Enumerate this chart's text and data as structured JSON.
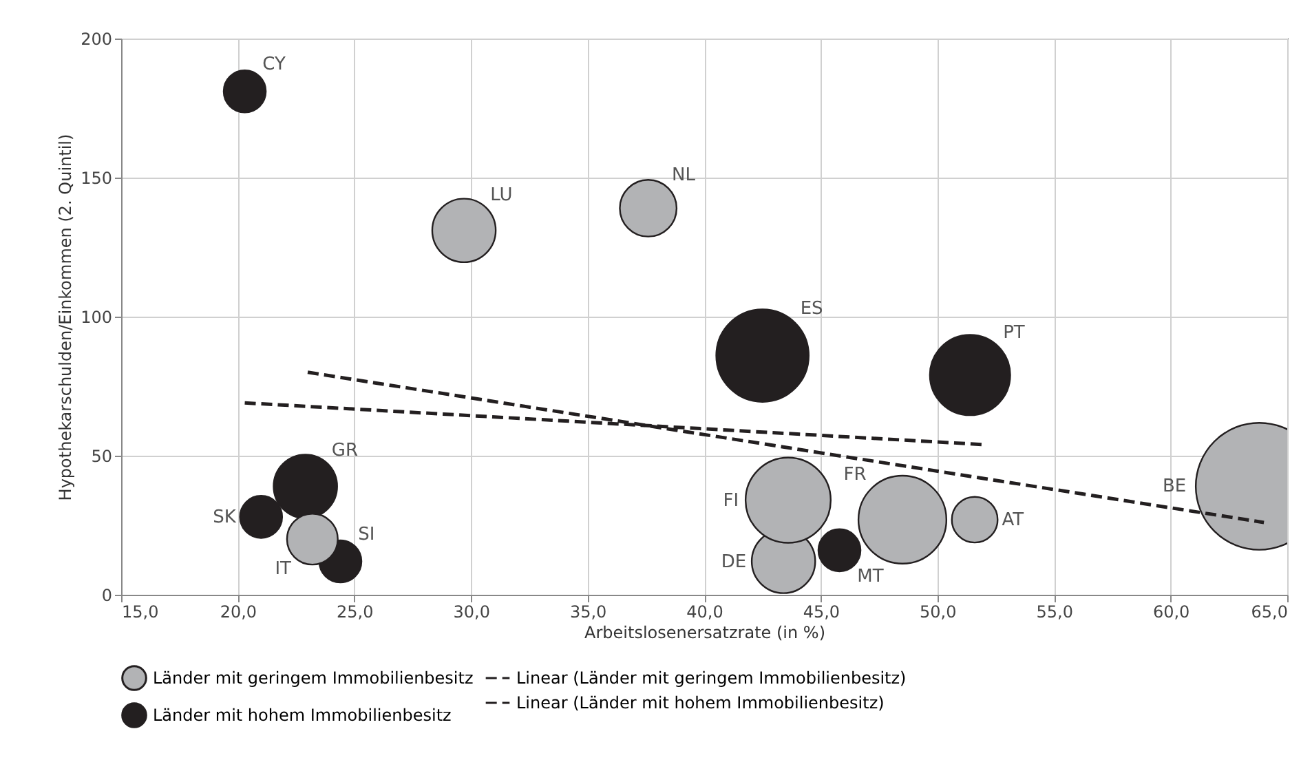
{
  "chart_data": {
    "type": "bubble",
    "xlabel": "Arbeitslosenersatzrate (in %)",
    "ylabel": "Hypothekarschulden/Einkommen (2. Quintil)",
    "xlim": [
      15,
      65
    ],
    "xticks": [
      {
        "value": 15,
        "label": "15,0"
      },
      {
        "value": 20,
        "label": "20,0"
      },
      {
        "value": 25,
        "label": "25,0"
      },
      {
        "value": 30,
        "label": "30,0"
      },
      {
        "value": 35,
        "label": "35,0"
      },
      {
        "value": 40,
        "label": "40,0"
      },
      {
        "value": 45,
        "label": "45,0"
      },
      {
        "value": 50,
        "label": "50,0"
      },
      {
        "value": 55,
        "label": "55,0"
      },
      {
        "value": 60,
        "label": "60,0"
      },
      {
        "value": 65,
        "label": "65,0"
      }
    ],
    "ylim": [
      0,
      200
    ],
    "yticks": [
      0,
      50,
      100,
      150,
      200
    ],
    "grid": true,
    "legend": "bottom",
    "series": [
      {
        "name": "Länder mit geringem Immobilienbesitz",
        "color": "#b2b3b5",
        "x": [
          29.7,
          37.6,
          23.2,
          43.6,
          43.4,
          48.5,
          51.6,
          63.8
        ],
        "values": [
          131,
          139,
          20,
          34,
          12,
          27,
          27,
          39
        ],
        "sizes": [
          0.25,
          0.2,
          0.16,
          0.45,
          0.25,
          0.48,
          0.13,
          1
        ],
        "value_labels": [
          "LU",
          "NL",
          "IT",
          "FI",
          "DE",
          "FR",
          "AT",
          "BE"
        ]
      },
      {
        "name": "Länder mit hohem Immobilienbesitz",
        "color": "#231f20",
        "x": [
          20.3,
          22.9,
          21.0,
          24.4,
          42.5,
          51.4,
          45.8
        ],
        "values": [
          181,
          39,
          28,
          12,
          86,
          79,
          16
        ],
        "sizes": [
          0.11,
          0.25,
          0.11,
          0.11,
          0.53,
          0.4,
          0.11
        ],
        "value_labels": [
          "CY",
          "GR",
          "SK",
          "SI",
          "ES",
          "PT",
          "MT"
        ]
      },
      {
        "name": "Linear (Länder mit geringem Immobilienbesitz)",
        "type": "line",
        "color": "#231f20",
        "line_style": "dashed",
        "x": [
          23.0,
          64.0
        ],
        "values": [
          80,
          26
        ]
      },
      {
        "name": "Linear (Länder mit hohem Immobilienbesitz)",
        "type": "line",
        "color": "#231f20",
        "line_style": "dashed",
        "x": [
          20.3,
          52.0
        ],
        "values": [
          69,
          54
        ]
      }
    ]
  }
}
